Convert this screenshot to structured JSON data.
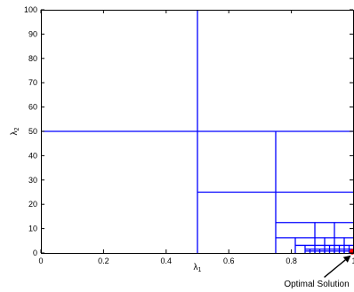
{
  "chart_data": {
    "type": "partition",
    "xlabel_main": "λ",
    "xlabel_sub": "1",
    "ylabel_main": "λ",
    "ylabel_sub": "2",
    "xlim": [
      0,
      1
    ],
    "ylim": [
      0,
      100
    ],
    "xticks": [
      0,
      0.2,
      0.4,
      0.6,
      0.8,
      1
    ],
    "xtick_labels": [
      "0",
      "0.2",
      "0.4",
      "0.6",
      "0.8",
      "1"
    ],
    "yticks": [
      0,
      10,
      20,
      30,
      40,
      50,
      60,
      70,
      80,
      90,
      100
    ],
    "ytick_labels": [
      "0",
      "10",
      "20",
      "30",
      "40",
      "50",
      "60",
      "70",
      "80",
      "90",
      "100"
    ],
    "grid": false,
    "line_color": "#0000ff",
    "segments": [
      {
        "x1": 0.5,
        "y1": 0,
        "x2": 0.5,
        "y2": 100
      },
      {
        "x1": 0,
        "y1": 50,
        "x2": 1,
        "y2": 50
      },
      {
        "x1": 0.75,
        "y1": 0,
        "x2": 0.75,
        "y2": 50
      },
      {
        "x1": 0.5,
        "y1": 25,
        "x2": 1,
        "y2": 25
      },
      {
        "x1": 0.75,
        "y1": 12.5,
        "x2": 1,
        "y2": 12.5
      },
      {
        "x1": 0.875,
        "y1": 0,
        "x2": 0.875,
        "y2": 12.5
      },
      {
        "x1": 0.75,
        "y1": 6.25,
        "x2": 1,
        "y2": 6.25
      },
      {
        "x1": 0.8125,
        "y1": 0,
        "x2": 0.8125,
        "y2": 6.25
      },
      {
        "x1": 0.9375,
        "y1": 0,
        "x2": 0.9375,
        "y2": 12.5
      },
      {
        "x1": 0.8125,
        "y1": 3.125,
        "x2": 1,
        "y2": 3.125
      },
      {
        "x1": 0.84375,
        "y1": 0,
        "x2": 0.84375,
        "y2": 3.125
      },
      {
        "x1": 0.90625,
        "y1": 0,
        "x2": 0.90625,
        "y2": 6.25
      },
      {
        "x1": 0.96875,
        "y1": 0,
        "x2": 0.96875,
        "y2": 6.25
      },
      {
        "x1": 0.84375,
        "y1": 1.5625,
        "x2": 1,
        "y2": 1.5625
      },
      {
        "x1": 0.859375,
        "y1": 0,
        "x2": 0.859375,
        "y2": 1.5625
      },
      {
        "x1": 0.890625,
        "y1": 0,
        "x2": 0.890625,
        "y2": 1.5625
      },
      {
        "x1": 0.921875,
        "y1": 0,
        "x2": 0.921875,
        "y2": 3.125
      },
      {
        "x1": 0.953125,
        "y1": 0,
        "x2": 0.953125,
        "y2": 3.125
      },
      {
        "x1": 0.984375,
        "y1": 0,
        "x2": 0.984375,
        "y2": 3.125
      },
      {
        "x1": 0.84375,
        "y1": 0.78,
        "x2": 1,
        "y2": 0.78
      },
      {
        "x1": 0.875,
        "y1": 0,
        "x2": 0.875,
        "y2": 0.78
      },
      {
        "x1": 0.90625,
        "y1": 0,
        "x2": 0.90625,
        "y2": 0.78
      },
      {
        "x1": 0.9375,
        "y1": 0,
        "x2": 0.9375,
        "y2": 0.78
      },
      {
        "x1": 0.96875,
        "y1": 0,
        "x2": 0.96875,
        "y2": 0.78
      }
    ],
    "optimal_point": {
      "x": 1.0,
      "y": 0.5,
      "color": "#ff0000"
    },
    "annotation": {
      "text": "Optimal Solution",
      "arrow_from": {
        "x": 0.905,
        "y": -10
      },
      "arrow_to": {
        "x": 0.99,
        "y": -1
      }
    }
  }
}
